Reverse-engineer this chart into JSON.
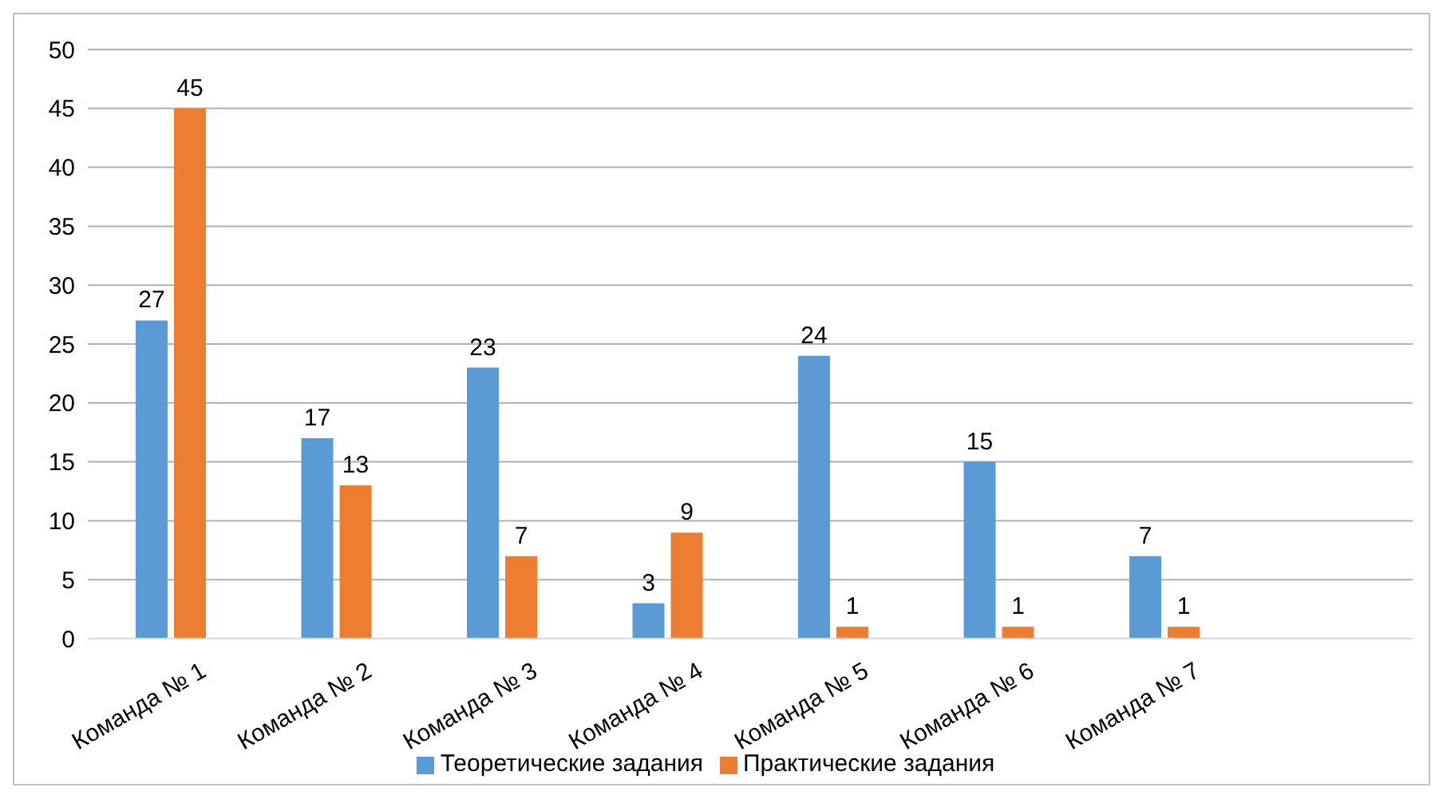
{
  "chart_data": {
    "type": "bar",
    "categories": [
      "Команда № 1",
      "Команда № 2",
      "Команда № 3",
      "Команда № 4",
      "Команда № 5",
      "Команда № 6",
      "Команда № 7",
      null
    ],
    "series": [
      {
        "name": "Теоретические задания",
        "color": "#5b9bd5",
        "values": [
          27,
          17,
          23,
          3,
          24,
          15,
          7,
          null
        ]
      },
      {
        "name": "Практические задания",
        "color": "#ed7d31",
        "values": [
          45,
          13,
          7,
          9,
          1,
          1,
          1,
          null
        ]
      }
    ],
    "ylim": [
      0,
      50
    ],
    "yticks": [
      0,
      5,
      10,
      15,
      20,
      25,
      30,
      35,
      40,
      45,
      50
    ],
    "grid": "y",
    "legend": "bottom",
    "data_labels": true
  }
}
